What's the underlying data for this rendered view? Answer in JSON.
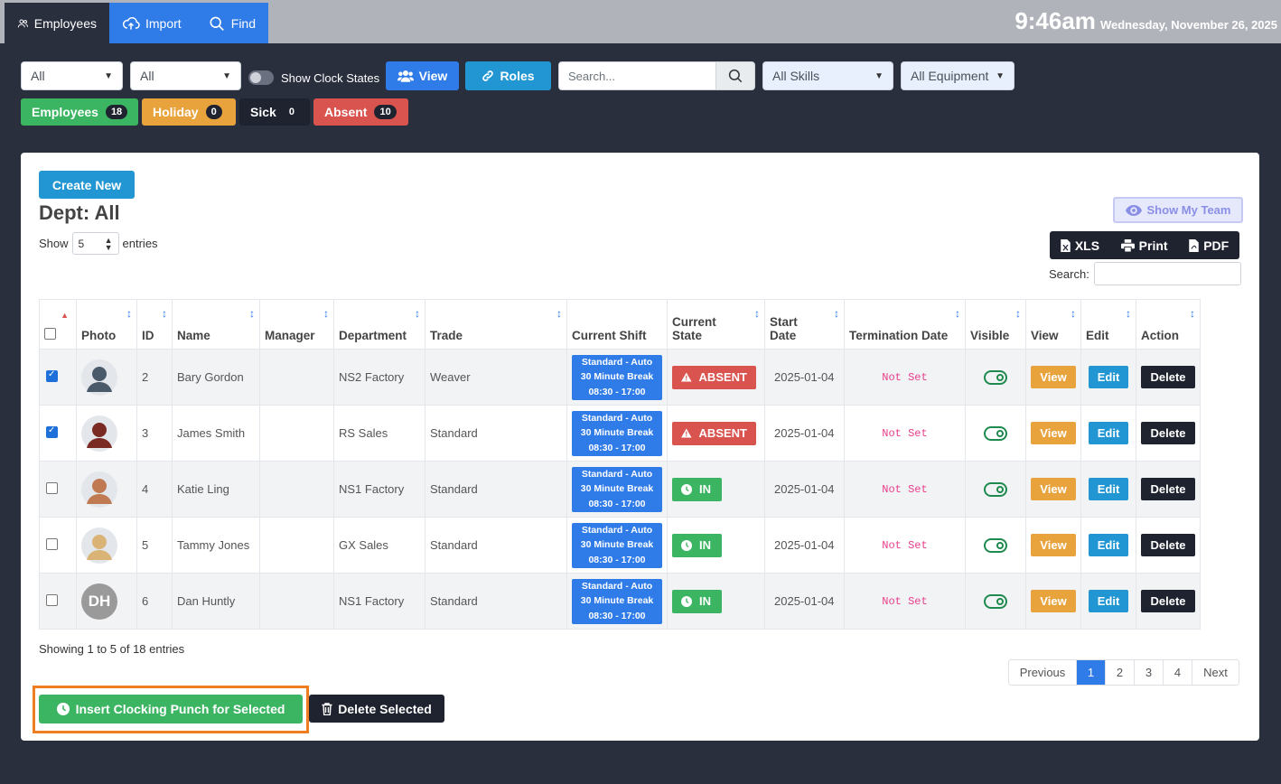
{
  "nav": {
    "employees": "Employees",
    "import": "Import",
    "find": "Find"
  },
  "clock": {
    "time": "9:46am",
    "date": "Wednesday, November 26, 2025"
  },
  "filters": {
    "filter1": "All",
    "filter2": "All",
    "show_clock_states": "Show Clock States",
    "view_label": "View",
    "roles_label": "Roles",
    "search_placeholder": "Search...",
    "skills": "All Skills",
    "equipment": "All Equipment"
  },
  "status_counts": [
    {
      "label": "Employees",
      "count": "18",
      "color": "#3cb563"
    },
    {
      "label": "Holiday",
      "count": "0",
      "color": "#e8a33d"
    },
    {
      "label": "Sick",
      "count": "0",
      "color": "#1f2330"
    },
    {
      "label": "Absent",
      "count": "10",
      "color": "#d9534f"
    }
  ],
  "card": {
    "create_new": "Create New",
    "dept_title": "Dept: All",
    "show": "Show",
    "entries_value": "5",
    "entries": "entries",
    "show_my_team": "Show My Team",
    "export": {
      "xls": "XLS",
      "print": "Print",
      "pdf": "PDF"
    },
    "search_label": "Search:"
  },
  "table": {
    "headers": {
      "photo": "Photo",
      "id": "ID",
      "name": "Name",
      "manager": "Manager",
      "department": "Department",
      "trade": "Trade",
      "current_shift": "Current Shift",
      "current_state_1": "Current",
      "current_state_2": "State",
      "start_date_1": "Start",
      "start_date_2": "Date",
      "termination_date": "Termination Date",
      "visible": "Visible",
      "view": "View",
      "edit": "Edit",
      "action": "Action"
    },
    "rows": [
      {
        "checked": true,
        "id": "2",
        "name": "Bary Gordon",
        "manager": "",
        "department": "NS2 Factory",
        "trade": "Weaver",
        "shift": [
          "Standard - Auto",
          "30 Minute Break",
          "08:30 - 17:00"
        ],
        "state": "ABSENT",
        "start": "2025-01-04",
        "termination": "Not Set",
        "view": "View",
        "edit": "Edit",
        "delete": "Delete",
        "avatar_color": "#4a5a6a"
      },
      {
        "checked": true,
        "id": "3",
        "name": "James Smith",
        "manager": "",
        "department": "RS Sales",
        "trade": "Standard",
        "shift": [
          "Standard - Auto",
          "30 Minute Break",
          "08:30 - 17:00"
        ],
        "state": "ABSENT",
        "start": "2025-01-04",
        "termination": "Not Set",
        "view": "View",
        "edit": "Edit",
        "delete": "Delete",
        "avatar_color": "#7a2a22"
      },
      {
        "checked": false,
        "id": "4",
        "name": "Katie Ling",
        "manager": "",
        "department": "NS1 Factory",
        "trade": "Standard",
        "shift": [
          "Standard - Auto",
          "30 Minute Break",
          "08:30 - 17:00"
        ],
        "state": "IN",
        "start": "2025-01-04",
        "termination": "Not Set",
        "view": "View",
        "edit": "Edit",
        "delete": "Delete",
        "avatar_color": "#c07a52"
      },
      {
        "checked": false,
        "id": "5",
        "name": "Tammy Jones",
        "manager": "",
        "department": "GX Sales",
        "trade": "Standard",
        "shift": [
          "Standard - Auto",
          "30 Minute Break",
          "08:30 - 17:00"
        ],
        "state": "IN",
        "start": "2025-01-04",
        "termination": "Not Set",
        "view": "View",
        "edit": "Edit",
        "delete": "Delete",
        "avatar_color": "#d9b476"
      },
      {
        "checked": false,
        "id": "6",
        "name": "Dan Huntly",
        "manager": "",
        "department": "NS1 Factory",
        "trade": "Standard",
        "shift": [
          "Standard - Auto",
          "30 Minute Break",
          "08:30 - 17:00"
        ],
        "state": "IN",
        "start": "2025-01-04",
        "termination": "Not Set",
        "view": "View",
        "edit": "Edit",
        "delete": "Delete",
        "avatar_color": "#9a9a9a",
        "initials": "DH"
      }
    ]
  },
  "footer": {
    "info": "Showing 1 to 5 of 18 entries",
    "pager": [
      "Previous",
      "1",
      "2",
      "3",
      "4",
      "Next"
    ],
    "insert_punch": "Insert Clocking Punch for Selected",
    "delete_selected": "Delete Selected"
  }
}
